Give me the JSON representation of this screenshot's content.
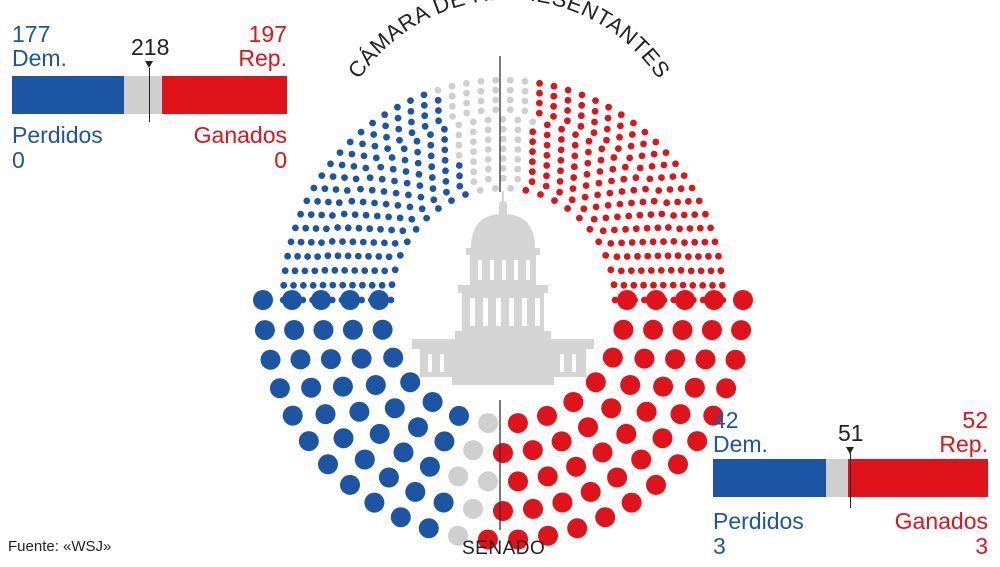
{
  "chart_data": [
    {
      "type": "bar",
      "title": "CÁMARA DE REPRESENTANTES",
      "majority": "218",
      "series": [
        {
          "name": "Dem.",
          "value": 177,
          "label": "177"
        },
        {
          "name": "Rep.",
          "value": 197,
          "label": "197"
        }
      ],
      "total_seats": 435,
      "lost_label": "Perdidos",
      "lost_value": "0",
      "won_label": "Ganados",
      "won_value": "0"
    },
    {
      "type": "bar",
      "title": "SENADO",
      "majority": "51",
      "series": [
        {
          "name": "Dem.",
          "value": 42,
          "label": "42"
        },
        {
          "name": "Rep.",
          "value": 52,
          "label": "52"
        }
      ],
      "total_seats": 100,
      "lost_label": "Perdidos",
      "lost_value": "3",
      "won_label": "Ganados",
      "won_value": "3"
    }
  ],
  "source": "Fuente: «WSJ»",
  "colors": {
    "dem": "#1d55a5",
    "rep": "#e0121a",
    "undecided": "#cfcfcf",
    "capitol": "#d4d4d4"
  },
  "icons": {
    "center": "capitol-icon"
  }
}
